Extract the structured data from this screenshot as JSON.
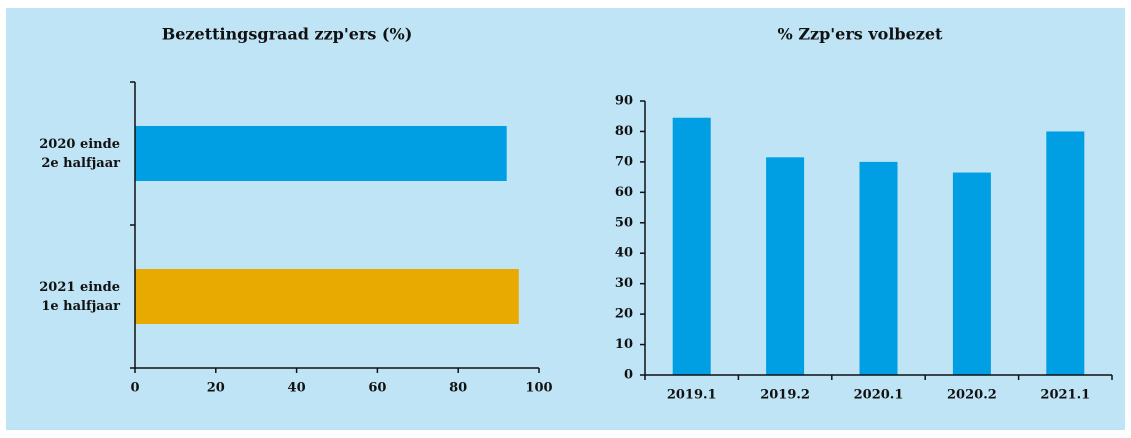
{
  "chart_data": [
    {
      "type": "hbar",
      "title": "Bezettingsgraad zzp'ers (%)",
      "categories": [
        "2020 einde\n2e halfjaar",
        "2021 einde\n1e halfjaar"
      ],
      "values": [
        92,
        95
      ],
      "colors": [
        "#009fe3",
        "#e8aa00"
      ],
      "xlim": [
        0,
        100
      ],
      "xticks": [
        0,
        20,
        40,
        60,
        80,
        100
      ]
    },
    {
      "type": "bar",
      "title": "% Zzp'ers volbezet",
      "categories": [
        "2019.1",
        "2019.2",
        "2020.1",
        "2020.2",
        "2021.1"
      ],
      "values": [
        84.5,
        71.5,
        70,
        66.5,
        80
      ],
      "color": "#009fe3",
      "ylim": [
        0,
        90
      ],
      "yticks": [
        0,
        10,
        20,
        30,
        40,
        50,
        60,
        70,
        80,
        90
      ]
    }
  ]
}
